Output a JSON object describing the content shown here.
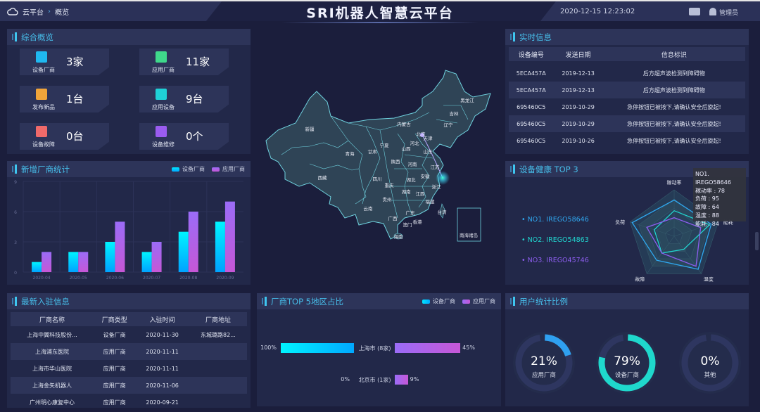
{
  "header": {
    "breadcrumb": [
      "云平台",
      "概览"
    ],
    "title": "SRI机器人智慧云平台",
    "datetime": "2020-12-15 12:23:02",
    "user": "管理员",
    "icons": [
      "cloud-icon",
      "message-icon",
      "user-icon"
    ]
  },
  "colors": {
    "cyan": "#00e5ff",
    "blue": "#00a8ff",
    "purple": "#9a6cf7",
    "magenta": "#c657d6",
    "accent": "#47bde9",
    "radar1": "#2fa8f0",
    "radar2": "#21d6d0",
    "radar3": "#8e5ef0"
  },
  "overview": {
    "title": "综合概览",
    "cards": [
      {
        "label": "设备厂商",
        "value": "3家",
        "icon": "factory-icon",
        "color": "#1fb8f0"
      },
      {
        "label": "应用厂商",
        "value": "11家",
        "icon": "building-icon",
        "color": "#3fd98b"
      },
      {
        "label": "发布新品",
        "value": "1台",
        "icon": "new-badge-icon",
        "color": "#f0a43a"
      },
      {
        "label": "应用设备",
        "value": "9台",
        "icon": "device-icon",
        "color": "#1fd0d6"
      },
      {
        "label": "设备故障",
        "value": "0台",
        "icon": "alarm-icon",
        "color": "#f06a6a"
      },
      {
        "label": "设备维修",
        "value": "0个",
        "icon": "wrench-icon",
        "color": "#9a5cf0"
      }
    ]
  },
  "realtime": {
    "title": "实时信息",
    "columns": [
      "设备编号",
      "发送日期",
      "信息标识"
    ],
    "rows": [
      [
        "5ECA457A",
        "2019-12-13",
        "后方超声波检测到障碍物"
      ],
      [
        "5ECA457A",
        "2019-12-13",
        "后方超声波检测到障碍物"
      ],
      [
        "695460C5",
        "2019-10-29",
        "急停按钮已被按下,请确认安全后旋起!"
      ],
      [
        "695460C5",
        "2019-10-29",
        "急停按钮已被按下,请确认安全后旋起!"
      ],
      [
        "695460C5",
        "2019-10-26",
        "急停按钮已被按下,请确认安全后旋起!"
      ]
    ]
  },
  "new_vendors": {
    "title": "新增厂商统计",
    "legend": [
      "设备厂商",
      "应用厂商"
    ]
  },
  "health": {
    "title": "设备健康 TOP 3",
    "items": [
      "NO1. IREGO58646",
      "NO2. IREGO54863",
      "NO3. IREGO45746"
    ],
    "tooltip": {
      "title": "NO1. IREGO58646",
      "lines": [
        "稼动率 : 78",
        "负荷 : 95",
        "故障 : 64",
        "温度 : 88",
        "能耗 : 84"
      ]
    }
  },
  "latest": {
    "title": "最新入驻信息",
    "columns": [
      "厂商名称",
      "厂商类型",
      "入驻时间",
      "厂商地址"
    ],
    "rows": [
      [
        "上海中翼科技股份...",
        "设备厂商",
        "2020-11-30",
        "东城璐路82..."
      ],
      [
        "上海浦东医院",
        "应用厂商",
        "2020-11-11",
        ""
      ],
      [
        "上海市华山医院",
        "应用厂商",
        "2020-11-11",
        ""
      ],
      [
        "上海金矢机器人",
        "应用厂商",
        "2020-11-06",
        ""
      ],
      [
        "广州明心康复中心",
        "应用厂商",
        "2020-09-21",
        ""
      ]
    ]
  },
  "region": {
    "title": "厂商TOP 5地区占比",
    "legend": [
      "设备厂商",
      "应用厂商"
    ],
    "rows": [
      {
        "name": "上海市 (8家)",
        "left_label": "100%",
        "left": 100,
        "right_label": "45%",
        "right": 45
      },
      {
        "name": "北京市 (1家)",
        "left_label": "0%",
        "left": 0,
        "right_label": "9%",
        "right": 9
      }
    ]
  },
  "users": {
    "title": "用户统计比例",
    "items": [
      {
        "pct": "21%",
        "value": 21,
        "label": "应用厂商",
        "color": "#2fa0f0"
      },
      {
        "pct": "79%",
        "value": 79,
        "label": "设备厂商",
        "color": "#1fd8cc"
      },
      {
        "pct": "0%",
        "value": 0,
        "label": "其他",
        "color": "#1fd8cc"
      }
    ]
  },
  "map": {
    "provinces": [
      "新疆",
      "西藏",
      "青海",
      "甘肃",
      "宁夏",
      "内蒙古",
      "黑龙江",
      "吉林",
      "辽宁",
      "北京",
      "天津",
      "河北",
      "山西",
      "山东",
      "陕西",
      "河南",
      "江苏",
      "四川",
      "湖北",
      "安徽",
      "浙江",
      "重庆",
      "湖南",
      "江西",
      "贵州",
      "福建",
      "云南",
      "广西",
      "广东",
      "台湾",
      "澳门",
      "香港",
      "海南",
      "南海诸岛"
    ]
  },
  "chart_data": [
    {
      "type": "bar",
      "title": "新增厂商统计",
      "categories": [
        "2020-04",
        "2020-05",
        "2020-06",
        "2020-07",
        "2020-08",
        "2020-09"
      ],
      "series": [
        {
          "name": "设备厂商",
          "values": [
            1,
            2,
            3,
            2,
            4,
            5
          ]
        },
        {
          "name": "应用厂商",
          "values": [
            2,
            2,
            5,
            3,
            6,
            7
          ]
        }
      ],
      "ylim": [
        0,
        9
      ],
      "yticks": [
        "0",
        "3",
        "6",
        "9"
      ],
      "grid": true,
      "legend": "top-right"
    },
    {
      "type": "radar",
      "title": "设备健康 TOP 3",
      "indicators": [
        "稼动率",
        "能耗",
        "温度",
        "故障",
        "负荷"
      ],
      "max": 100,
      "series": [
        {
          "name": "NO1. IREGO58646",
          "values": [
            78,
            84,
            88,
            64,
            95
          ]
        },
        {
          "name": "NO2. IREGO54863",
          "values": [
            55,
            80,
            35,
            45,
            45
          ]
        },
        {
          "name": "NO3. IREGO45746",
          "values": [
            40,
            60,
            80,
            45,
            62
          ]
        }
      ]
    }
  ]
}
